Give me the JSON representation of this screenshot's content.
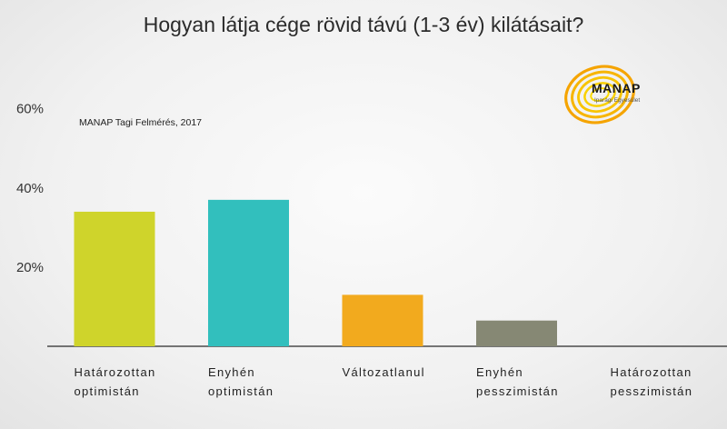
{
  "chart_data": {
    "type": "bar",
    "title": "Hogyan látja cége rövid távú (1-3 év) kilátásait?",
    "annotation": "MANAP Tagi Felmérés, 2017",
    "categories": [
      [
        "Határozottan",
        "optimistán"
      ],
      [
        "Enyhén",
        "optimistán"
      ],
      [
        "Változatlanul"
      ],
      [
        "Enyhén",
        "pesszimistán"
      ],
      [
        "Határozottan",
        "pesszimistán"
      ]
    ],
    "values": [
      34,
      37,
      13,
      6.5,
      0
    ],
    "colors": [
      "#cfd42b",
      "#32bfbd",
      "#f2aa1e",
      "#868874",
      "#868874"
    ],
    "ylim": [
      0,
      65
    ],
    "yticks": [
      20,
      40,
      60
    ],
    "ytick_labels": [
      "20%",
      "40%",
      "60%"
    ],
    "grid": false
  },
  "logo": {
    "name": "MANAP",
    "subtitle": "Iparági Egyesület"
  }
}
